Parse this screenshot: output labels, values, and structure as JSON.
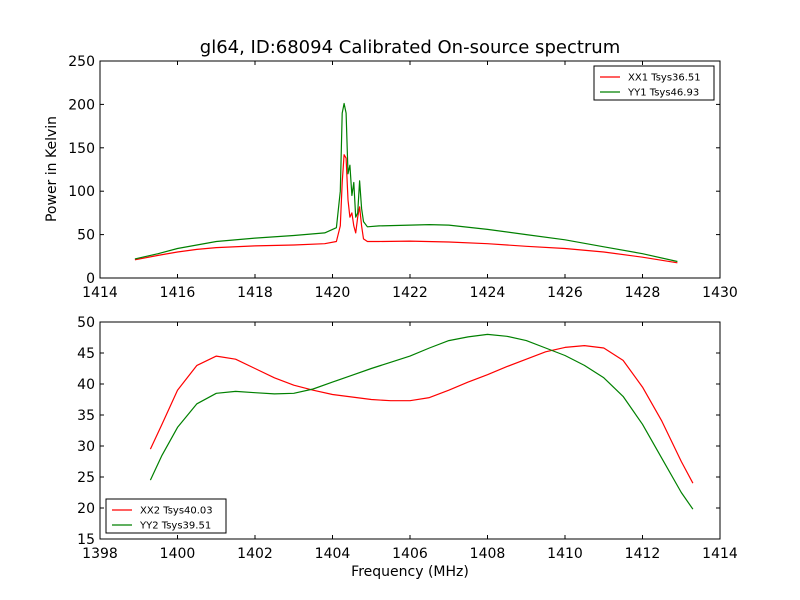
{
  "title": "gl64, ID:68094 Calibrated On-source spectrum",
  "xlabel": "Frequency (MHz)",
  "ylabel": "Power in Kelvin",
  "chart_data": [
    {
      "type": "line",
      "title": "gl64, ID:68094 Calibrated On-source spectrum",
      "ylabel": "Power in Kelvin",
      "xlabel": "",
      "xlim": [
        1414,
        1430
      ],
      "ylim": [
        0,
        250
      ],
      "xticks": [
        1414,
        1416,
        1418,
        1420,
        1422,
        1424,
        1426,
        1428,
        1430
      ],
      "yticks": [
        0,
        50,
        100,
        150,
        200,
        250
      ],
      "grid": false,
      "legend_position": "top-right",
      "series": [
        {
          "name": "XX1 Tsys36.51",
          "color": "#ff0000",
          "x": [
            1414.9,
            1415.5,
            1416,
            1416.5,
            1417,
            1418,
            1419,
            1419.8,
            1420.1,
            1420.2,
            1420.25,
            1420.3,
            1420.35,
            1420.4,
            1420.45,
            1420.5,
            1420.55,
            1420.6,
            1420.65,
            1420.7,
            1420.75,
            1420.8,
            1420.9,
            1421.2,
            1422,
            1423,
            1424,
            1425,
            1426,
            1427,
            1428,
            1428.9
          ],
          "y": [
            21,
            26,
            30,
            33,
            35,
            37,
            38,
            39.5,
            42,
            60,
            110,
            142,
            138,
            90,
            70,
            75,
            60,
            52,
            70,
            82,
            60,
            45,
            42,
            42,
            42.5,
            41.5,
            39.5,
            36.5,
            34,
            30,
            24,
            17.5
          ]
        },
        {
          "name": "YY1 Tsys46.93",
          "color": "#008000",
          "x": [
            1414.9,
            1415.5,
            1416,
            1416.5,
            1417,
            1418,
            1419,
            1419.8,
            1420.1,
            1420.2,
            1420.25,
            1420.3,
            1420.35,
            1420.4,
            1420.45,
            1420.5,
            1420.55,
            1420.6,
            1420.65,
            1420.7,
            1420.75,
            1420.8,
            1420.9,
            1421.2,
            1422,
            1422.5,
            1423,
            1424,
            1425,
            1426,
            1427,
            1428,
            1428.9
          ],
          "y": [
            22,
            28,
            34,
            38,
            42,
            46,
            49,
            52,
            58,
            100,
            190,
            201,
            190,
            120,
            130,
            95,
            110,
            70,
            75,
            112,
            80,
            65,
            59,
            60,
            61,
            61.5,
            61,
            56,
            50,
            44,
            36,
            28,
            19
          ]
        }
      ]
    },
    {
      "type": "line",
      "title": "",
      "xlabel": "Frequency (MHz)",
      "ylabel": "",
      "xlim": [
        1398,
        1414
      ],
      "ylim": [
        15,
        50
      ],
      "xticks": [
        1398,
        1400,
        1402,
        1404,
        1406,
        1408,
        1410,
        1412,
        1414
      ],
      "yticks": [
        15,
        20,
        25,
        30,
        35,
        40,
        45,
        50
      ],
      "grid": false,
      "legend_position": "bottom-left",
      "series": [
        {
          "name": "XX2 Tsys40.03",
          "color": "#ff0000",
          "x": [
            1399.3,
            1399.6,
            1400,
            1400.5,
            1401,
            1401.5,
            1402,
            1402.5,
            1403,
            1403.5,
            1404,
            1404.5,
            1405,
            1405.5,
            1406,
            1406.5,
            1407,
            1407.5,
            1408,
            1408.5,
            1409,
            1409.5,
            1410,
            1410.5,
            1411,
            1411.5,
            1412,
            1412.5,
            1413,
            1413.3
          ],
          "y": [
            29.5,
            33.5,
            39,
            43,
            44.5,
            44,
            42.5,
            41,
            39.8,
            39,
            38.3,
            37.9,
            37.5,
            37.3,
            37.3,
            37.8,
            39,
            40.3,
            41.5,
            42.8,
            44,
            45.2,
            45.9,
            46.2,
            45.8,
            43.8,
            39.5,
            34,
            27.5,
            24
          ]
        },
        {
          "name": "YY2 Tsys39.51",
          "color": "#008000",
          "x": [
            1399.3,
            1399.6,
            1400,
            1400.5,
            1401,
            1401.5,
            1402,
            1402.5,
            1403,
            1403.5,
            1404,
            1404.5,
            1405,
            1405.5,
            1406,
            1406.5,
            1407,
            1407.5,
            1408,
            1408.5,
            1409,
            1409.5,
            1410,
            1410.5,
            1411,
            1411.5,
            1412,
            1412.5,
            1413,
            1413.3
          ],
          "y": [
            24.5,
            28.5,
            33,
            36.8,
            38.5,
            38.8,
            38.6,
            38.4,
            38.5,
            39.2,
            40.3,
            41.4,
            42.5,
            43.5,
            44.5,
            45.8,
            47,
            47.6,
            48,
            47.7,
            47,
            45.8,
            44.6,
            43,
            41,
            38,
            33.5,
            28,
            22.5,
            19.8
          ]
        }
      ]
    }
  ]
}
